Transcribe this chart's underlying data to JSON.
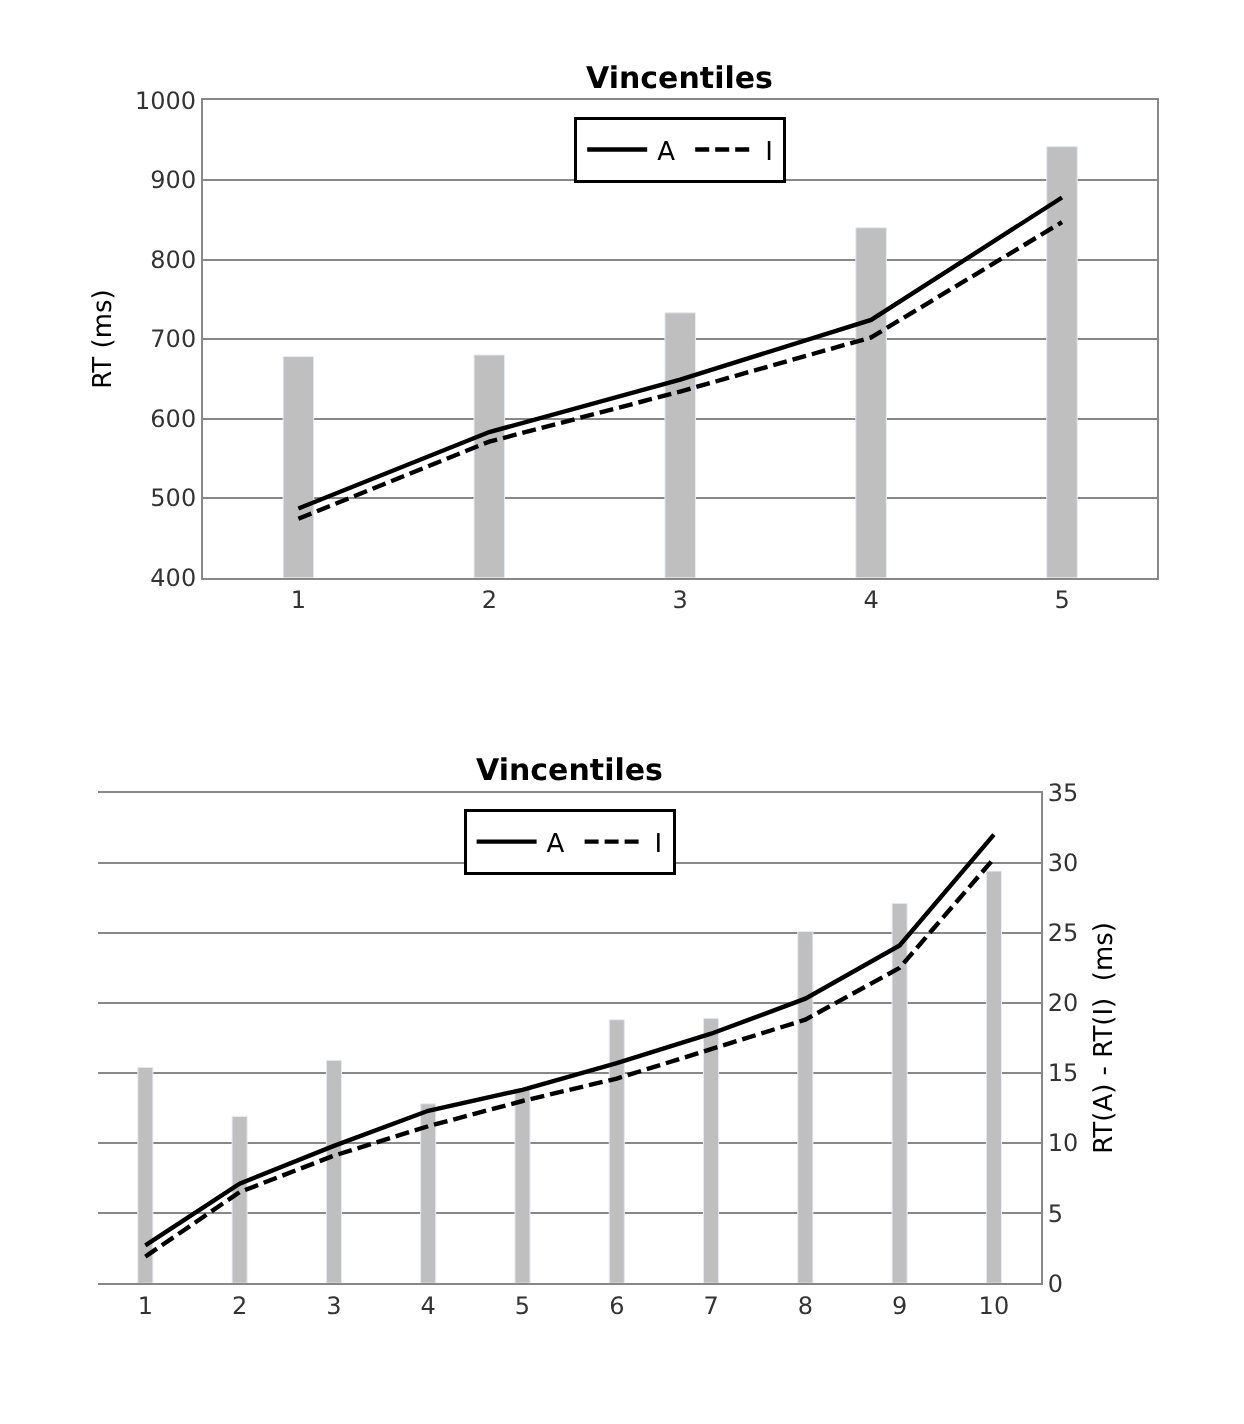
{
  "chart_data": [
    {
      "type": "bar",
      "title": "Vincentiles",
      "ylabel": "RT (ms)",
      "categories": [
        "1",
        "2",
        "3",
        "4",
        "5"
      ],
      "ylim": [
        400,
        1000
      ],
      "yticks": [
        400,
        500,
        600,
        700,
        800,
        900,
        1000
      ],
      "grid": "y",
      "legend": "top",
      "series": [
        {
          "color": "#bfbfbf",
          "values": [
            678,
            680,
            733,
            840,
            942
          ]
        },
        {
          "type": "line",
          "name": "A",
          "color": "#000000",
          "line_style": "solid",
          "values": [
            487,
            583,
            649,
            724,
            878
          ]
        },
        {
          "type": "line",
          "name": "I",
          "color": "#000000",
          "line_style": "dashed",
          "values": [
            474,
            571,
            634,
            702,
            847
          ]
        }
      ]
    },
    {
      "type": "bar",
      "title": "Vincentiles",
      "y2label": "RT(A) - RT(I)  (ms)",
      "categories": [
        "1",
        "2",
        "3",
        "4",
        "5",
        "6",
        "7",
        "8",
        "9",
        "10"
      ],
      "y2lim": [
        0,
        35
      ],
      "y2ticks": [
        0,
        5,
        10,
        15,
        20,
        25,
        30,
        35
      ],
      "grid": "y",
      "legend": "top",
      "series": [
        {
          "axis": "y2",
          "color": "#bfbfbf",
          "values": [
            15.4,
            11.9,
            15.9,
            12.8,
            13.9,
            18.8,
            18.9,
            25.1,
            27.1,
            29.4
          ]
        },
        {
          "type": "line",
          "axis": "y2",
          "name": "A",
          "color": "#000000",
          "line_style": "solid",
          "values": [
            2.7,
            7.1,
            9.8,
            12.3,
            13.8,
            15.7,
            17.8,
            20.3,
            24.1,
            32.0
          ]
        },
        {
          "type": "line",
          "axis": "y2",
          "name": "I",
          "color": "#000000",
          "line_style": "dashed",
          "values": [
            1.9,
            6.5,
            9.1,
            11.2,
            13.0,
            14.6,
            16.7,
            18.8,
            22.5,
            30.3
          ]
        }
      ]
    }
  ]
}
